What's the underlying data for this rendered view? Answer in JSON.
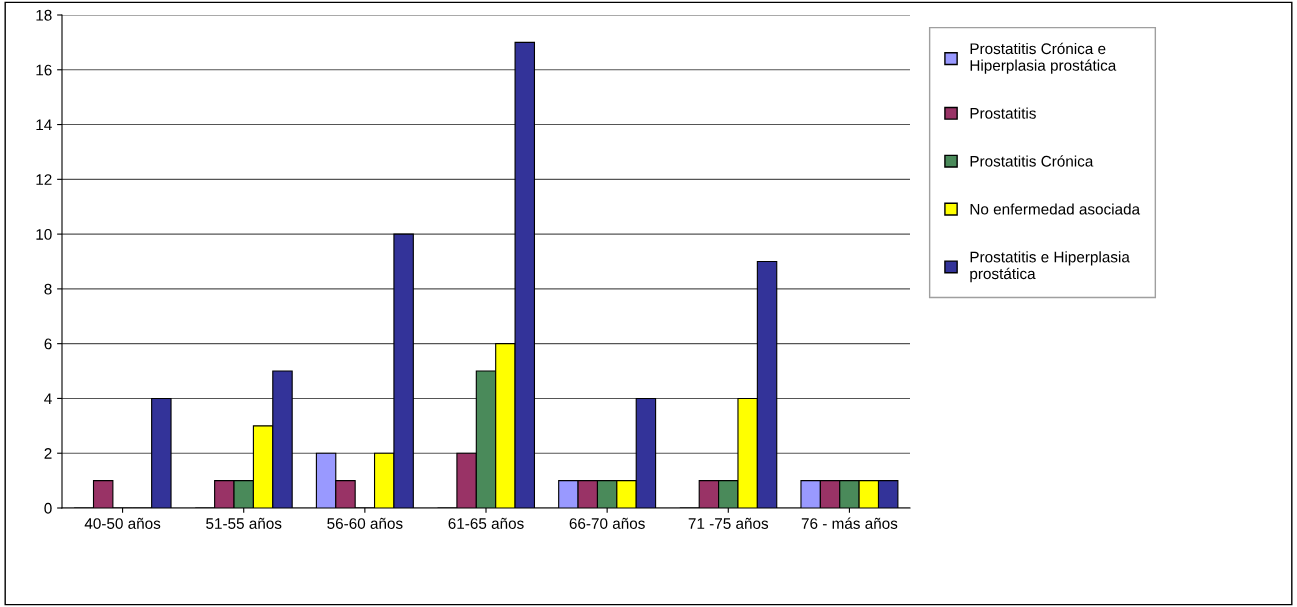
{
  "chart_data": {
    "type": "bar",
    "categories": [
      "40-50 años",
      "51-55 años",
      "56-60 años",
      "61-65 años",
      "66-70 años",
      "71 -75 años",
      "76 - más años"
    ],
    "series": [
      {
        "name": "Prostatitis Crónica e Hiperplasia prostática",
        "color": "#9999ff",
        "values": [
          0,
          0,
          2,
          0,
          1,
          0,
          1
        ]
      },
      {
        "name": "Prostatitis",
        "color": "#993366",
        "values": [
          1,
          1,
          1,
          2,
          1,
          1,
          1
        ]
      },
      {
        "name": "Prostatitis Crónica",
        "color": "#4a8a5a",
        "values": [
          0,
          1,
          0,
          5,
          1,
          1,
          1
        ]
      },
      {
        "name": "No enfermedad asociada",
        "color": "#ffff00",
        "values": [
          0,
          3,
          2,
          6,
          1,
          4,
          1
        ]
      },
      {
        "name": "Prostatitis e Hiperplasia prostática",
        "color": "#333399",
        "values": [
          4,
          5,
          10,
          17,
          4,
          9,
          1
        ]
      }
    ],
    "ylim": [
      0,
      18
    ],
    "yticks": [
      0,
      2,
      4,
      6,
      8,
      10,
      12,
      14,
      16,
      18
    ],
    "grid": "y",
    "legend": "right"
  }
}
